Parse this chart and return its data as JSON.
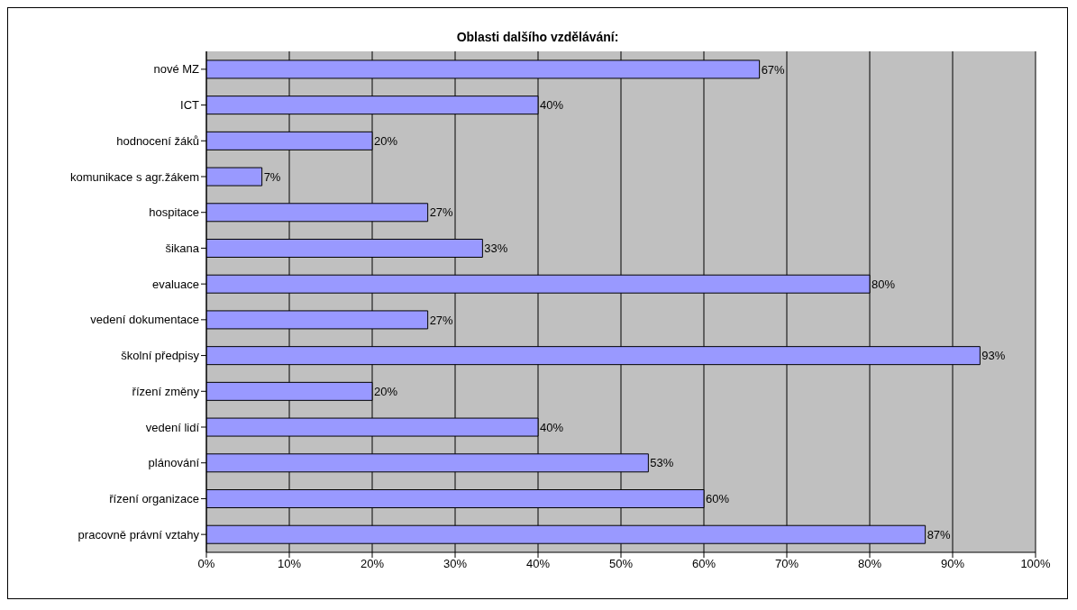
{
  "chart_data": {
    "type": "bar",
    "orientation": "horizontal",
    "title": "Oblasti dalšího vzdělávání:",
    "categories": [
      "nové MZ",
      "ICT",
      "hodnocení žáků",
      "komunikace s agr.žákem",
      "hospitace",
      "šikana",
      "evaluace",
      "vedení dokumentace",
      "školní předpisy",
      "řízení změny",
      "vedení lidí",
      "plánování",
      "řízení organizace",
      "pracovně právní vztahy"
    ],
    "values": [
      66.7,
      40,
      20,
      6.7,
      26.7,
      33.3,
      80,
      26.7,
      93.3,
      20,
      40,
      53.3,
      60,
      86.7
    ],
    "value_labels": [
      "67%",
      "40%",
      "20%",
      "7%",
      "27%",
      "33%",
      "80%",
      "27%",
      "93%",
      "20%",
      "40%",
      "53%",
      "60%",
      "87%"
    ],
    "color": "#9999ff",
    "xlim": [
      0,
      100
    ],
    "xticks": [
      {
        "value": 0,
        "label": "0%"
      },
      {
        "value": 10,
        "label": "10%"
      },
      {
        "value": 20,
        "label": "20%"
      },
      {
        "value": 30,
        "label": "30%"
      },
      {
        "value": 40,
        "label": "40%"
      },
      {
        "value": 50,
        "label": "50%"
      },
      {
        "value": 60,
        "label": "60%"
      },
      {
        "value": 70,
        "label": "70%"
      },
      {
        "value": 80,
        "label": "80%"
      },
      {
        "value": 90,
        "label": "90%"
      },
      {
        "value": 100,
        "label": "100%"
      }
    ],
    "grid": "x",
    "legend": false
  }
}
